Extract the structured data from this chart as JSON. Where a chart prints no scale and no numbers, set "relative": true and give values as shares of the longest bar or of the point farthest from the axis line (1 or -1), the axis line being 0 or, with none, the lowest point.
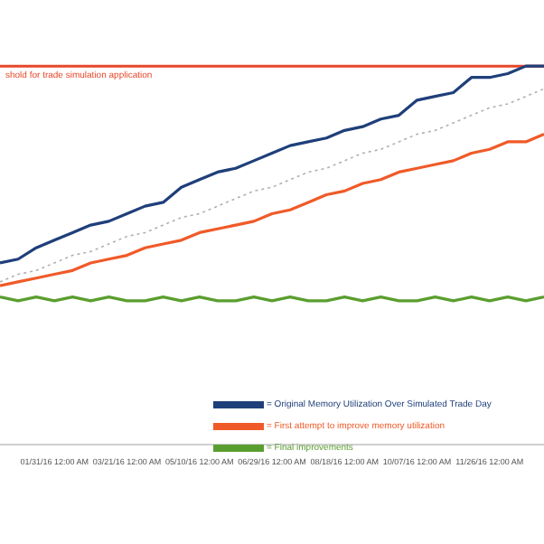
{
  "chart_data": {
    "type": "line",
    "relative": true,
    "grid": false,
    "legend": "bottom right",
    "categories": [
      null,
      null,
      null,
      "01/31/16 12:00 AM",
      null,
      null,
      null,
      "03/21/16 12:00 AM",
      null,
      null,
      null,
      "05/10/16 12:00 AM",
      null,
      null,
      null,
      "06/29/16 12:00 AM",
      null,
      null,
      null,
      "08/18/16 12:00 AM",
      null,
      null,
      null,
      "10/07/16 12:00 AM",
      null,
      null,
      null,
      "11/26/16 12:00 AM",
      null,
      null,
      null
    ],
    "series": [
      {
        "name": "= Original Memory Utilization Over Simulated Trade Day",
        "color": "#1f3f7a",
        "values": [
          0.48,
          0.49,
          0.52,
          0.54,
          0.56,
          0.58,
          0.59,
          0.61,
          0.63,
          0.64,
          0.68,
          0.7,
          0.72,
          0.73,
          0.75,
          0.77,
          0.79,
          0.8,
          0.81,
          0.83,
          0.84,
          0.86,
          0.87,
          0.91,
          0.92,
          0.93,
          0.97,
          0.97,
          0.98,
          1.0,
          1.0
        ]
      },
      {
        "name": "= First attempt to improve memory utilization",
        "color": "#f05a28",
        "values": [
          0.42,
          0.43,
          0.44,
          0.45,
          0.46,
          0.48,
          0.49,
          0.5,
          0.52,
          0.53,
          0.54,
          0.56,
          0.57,
          0.58,
          0.59,
          0.61,
          0.62,
          0.64,
          0.66,
          0.67,
          0.69,
          0.7,
          0.72,
          0.73,
          0.74,
          0.75,
          0.77,
          0.78,
          0.8,
          0.8,
          0.82
        ]
      },
      {
        "name": "= Final improvements",
        "color": "#5a9e2f",
        "values": [
          0.39,
          0.38,
          0.39,
          0.38,
          0.39,
          0.38,
          0.39,
          0.38,
          0.38,
          0.39,
          0.38,
          0.39,
          0.38,
          0.38,
          0.39,
          0.38,
          0.39,
          0.38,
          0.38,
          0.39,
          0.38,
          0.39,
          0.38,
          0.38,
          0.39,
          0.38,
          0.39,
          0.38,
          0.39,
          0.38,
          0.39
        ]
      },
      {
        "type": "line",
        "color": "#b0b0b0",
        "line_style": "dotted",
        "values": [
          0.43,
          0.45,
          0.46,
          0.48,
          0.5,
          0.51,
          0.53,
          0.55,
          0.56,
          0.58,
          0.6,
          0.61,
          0.63,
          0.65,
          0.67,
          0.68,
          0.7,
          0.72,
          0.73,
          0.75,
          0.77,
          0.78,
          0.8,
          0.82,
          0.83,
          0.85,
          0.87,
          0.89,
          0.9,
          0.92,
          0.94
        ]
      }
    ],
    "ref_lines": [
      {
        "axis": "y",
        "value": 1.0,
        "label": "shold for trade simulation application",
        "color": "#e8472a"
      }
    ]
  }
}
